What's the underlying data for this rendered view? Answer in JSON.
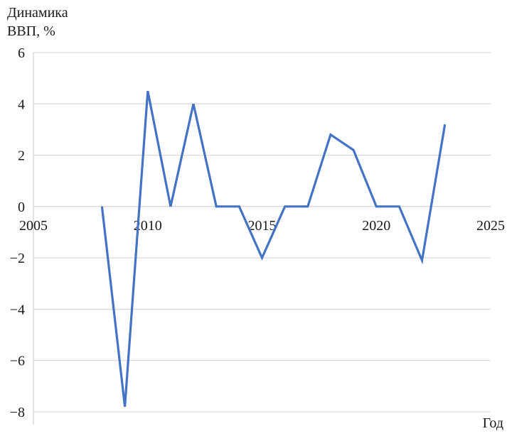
{
  "chart_data": {
    "type": "line",
    "ylabel_line1": "Динамика",
    "ylabel_line2": "ВВП, %",
    "xlabel": "Год",
    "xlim": [
      2005,
      2025
    ],
    "ylim": [
      -8.5,
      6
    ],
    "x_ticks": [
      2005,
      2010,
      2015,
      2020,
      2025
    ],
    "y_ticks": [
      6,
      4,
      2,
      0,
      -2,
      -4,
      -6,
      -8
    ],
    "x_tick_labels": [
      "2005",
      "2010",
      "2015",
      "2020",
      "2025"
    ],
    "y_tick_labels": [
      "6",
      "4",
      "2",
      "0",
      "−2",
      "−4",
      "−6",
      "−8"
    ],
    "grid": "horizontal",
    "series": [
      {
        "color": "#4472c4",
        "x": [
          2008,
          2009,
          2010,
          2011,
          2012,
          2013,
          2014,
          2015,
          2016,
          2017,
          2018,
          2019,
          2020,
          2021,
          2022,
          2023
        ],
        "y": [
          0,
          -7.8,
          4.5,
          0,
          4,
          0,
          0,
          -2,
          0,
          0,
          2.8,
          2.2,
          0,
          0,
          -2.1,
          3.2
        ]
      }
    ]
  }
}
